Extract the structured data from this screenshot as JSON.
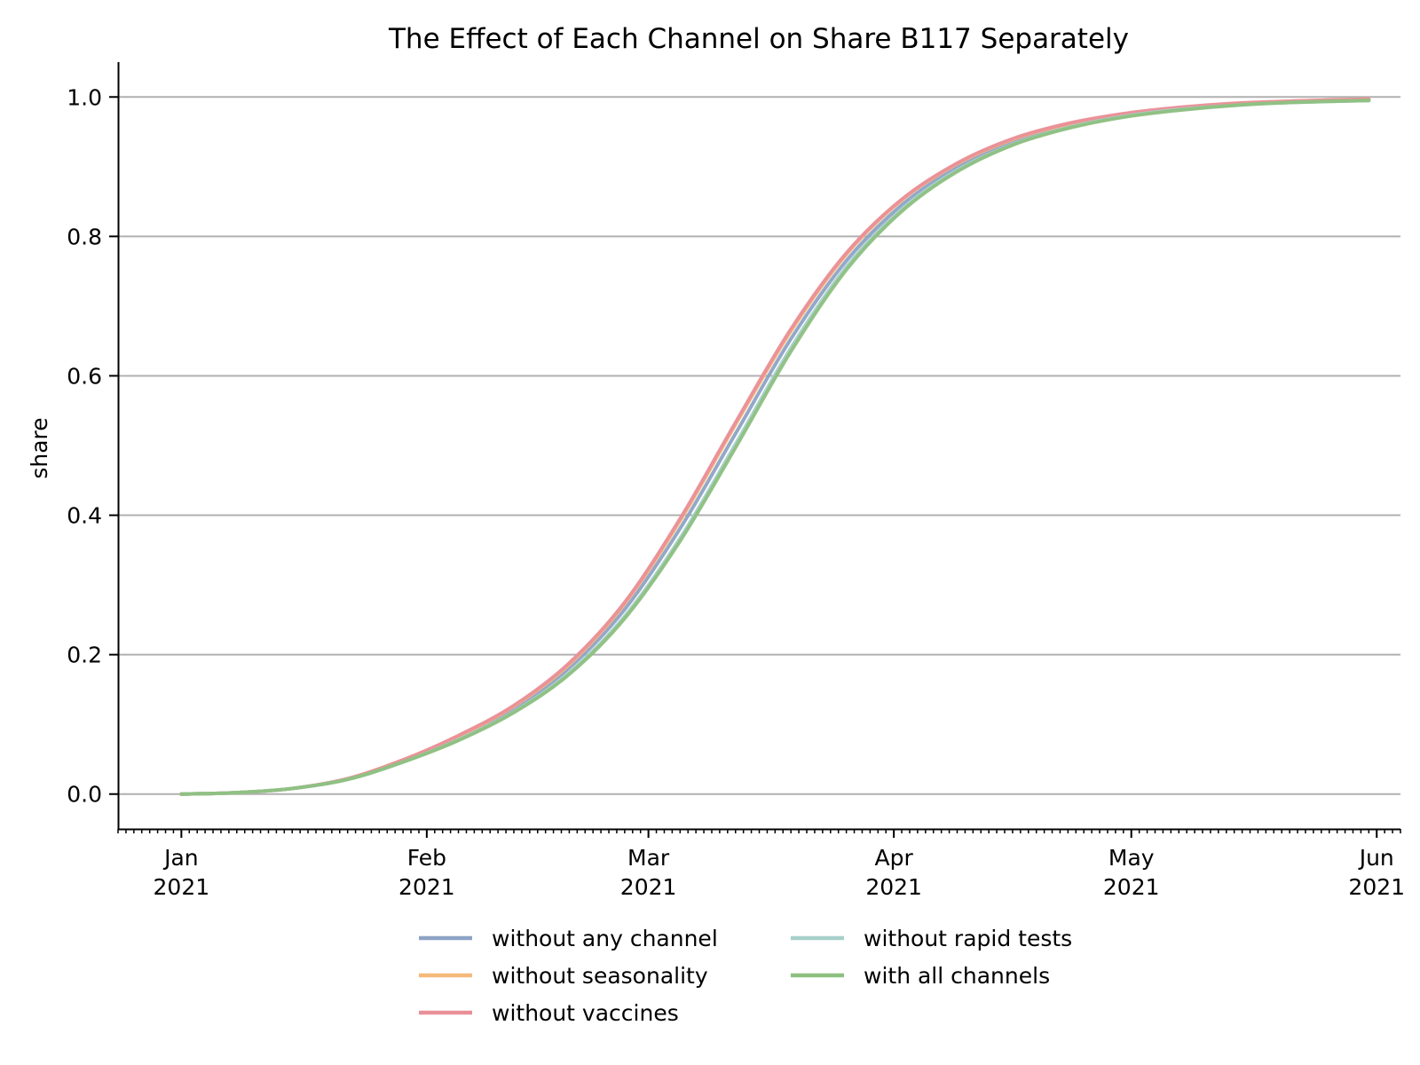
{
  "chart_data": {
    "type": "line",
    "title": "The Effect of Each Channel on Share B117 Separately",
    "xlabel": "",
    "ylabel": "share",
    "xlim": [
      "2020-12-24",
      "2021-06-04"
    ],
    "ylim": [
      -0.05,
      1.05
    ],
    "grid": "horizontal",
    "legend_position": "bottom-center",
    "y_ticks": [
      {
        "value": 0.0,
        "label": "0.0"
      },
      {
        "value": 0.2,
        "label": "0.2"
      },
      {
        "value": 0.4,
        "label": "0.4"
      },
      {
        "value": 0.6,
        "label": "0.6"
      },
      {
        "value": 0.8,
        "label": "0.8"
      },
      {
        "value": 1.0,
        "label": "1.0"
      }
    ],
    "x_ticks": [
      {
        "date": "2021-01-01",
        "month": "Jan",
        "year": "2021"
      },
      {
        "date": "2021-02-01",
        "month": "Feb",
        "year": "2021"
      },
      {
        "date": "2021-03-01",
        "month": "Mar",
        "year": "2021"
      },
      {
        "date": "2021-04-01",
        "month": "Apr",
        "year": "2021"
      },
      {
        "date": "2021-05-01",
        "month": "May",
        "year": "2021"
      },
      {
        "date": "2021-06-01",
        "month": "Jun",
        "year": "2021"
      }
    ],
    "x": [
      "2021-01-01",
      "2021-01-08",
      "2021-01-15",
      "2021-01-22",
      "2021-01-29",
      "2021-02-05",
      "2021-02-12",
      "2021-02-19",
      "2021-02-26",
      "2021-03-05",
      "2021-03-12",
      "2021-03-19",
      "2021-03-26",
      "2021-04-02",
      "2021-04-09",
      "2021-04-16",
      "2021-04-23",
      "2021-04-30",
      "2021-05-07",
      "2021-05-14",
      "2021-05-21",
      "2021-05-31"
    ],
    "series": [
      {
        "name": "without any channel",
        "color": "#8da3c5",
        "values": [
          0.0,
          0.002,
          0.008,
          0.022,
          0.048,
          0.081,
          0.123,
          0.181,
          0.265,
          0.381,
          0.517,
          0.653,
          0.765,
          0.845,
          0.899,
          0.935,
          0.958,
          0.973,
          0.983,
          0.989,
          0.993,
          0.996
        ]
      },
      {
        "name": "without seasonality",
        "color": "#f5b97a",
        "values": [
          0.0,
          0.002,
          0.008,
          0.022,
          0.049,
          0.083,
          0.126,
          0.186,
          0.273,
          0.392,
          0.53,
          0.664,
          0.774,
          0.852,
          0.904,
          0.939,
          0.961,
          0.975,
          0.984,
          0.99,
          0.994,
          0.997
        ]
      },
      {
        "name": "without vaccines",
        "color": "#e98f98",
        "values": [
          0.0,
          0.002,
          0.008,
          0.022,
          0.049,
          0.084,
          0.127,
          0.188,
          0.275,
          0.395,
          0.533,
          0.667,
          0.776,
          0.853,
          0.905,
          0.94,
          0.962,
          0.976,
          0.985,
          0.991,
          0.994,
          0.997
        ]
      },
      {
        "name": "without rapid tests",
        "color": "#a7cfcb",
        "values": [
          0.0,
          0.002,
          0.008,
          0.021,
          0.046,
          0.078,
          0.118,
          0.174,
          0.255,
          0.367,
          0.502,
          0.64,
          0.756,
          0.839,
          0.895,
          0.932,
          0.956,
          0.972,
          0.982,
          0.988,
          0.992,
          0.995
        ]
      },
      {
        "name": "with all channels",
        "color": "#8dc07f",
        "values": [
          0.0,
          0.002,
          0.008,
          0.021,
          0.046,
          0.077,
          0.117,
          0.172,
          0.252,
          0.363,
          0.497,
          0.635,
          0.752,
          0.836,
          0.893,
          0.931,
          0.955,
          0.971,
          0.981,
          0.988,
          0.992,
          0.995
        ]
      }
    ]
  }
}
